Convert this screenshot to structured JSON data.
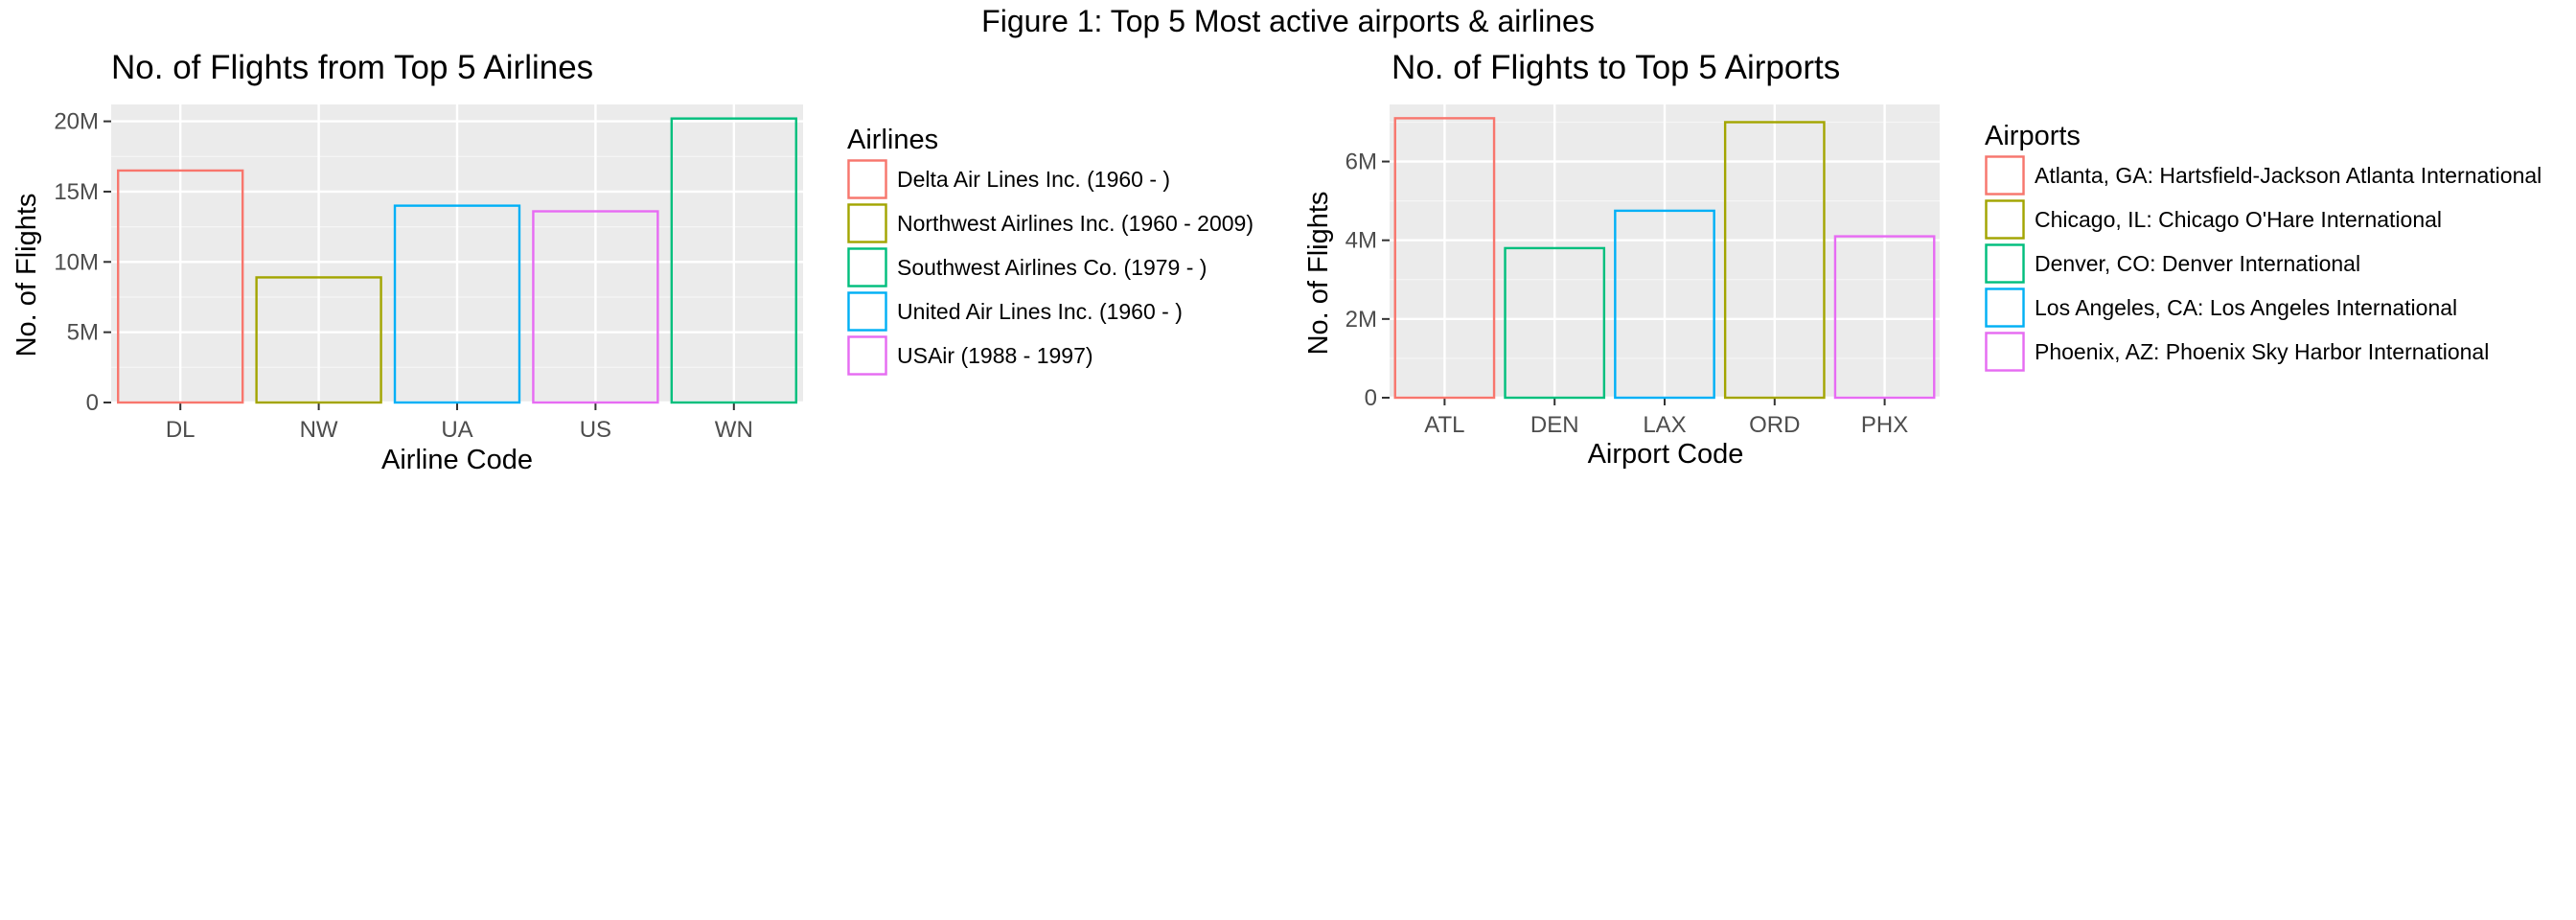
{
  "figure_title": "Figure 1: Top 5 Most active airports & airlines",
  "chart_data": [
    {
      "type": "bar",
      "title": "No. of Flights from Top 5 Airlines",
      "xlabel": "Airline Code",
      "ylabel": "No. of Flights",
      "categories": [
        "DL",
        "NW",
        "UA",
        "US",
        "WN"
      ],
      "values": [
        16500000,
        8900000,
        14000000,
        13600000,
        20200000
      ],
      "colors": [
        "#F8766D",
        "#A3A500",
        "#00B0F6",
        "#E76BF3",
        "#00BF7D"
      ],
      "ylim": [
        0,
        21200000
      ],
      "yticks": [
        0,
        5000000,
        10000000,
        15000000,
        20000000
      ],
      "ytick_labels": [
        "0",
        "5M",
        "10M",
        "15M",
        "20M"
      ],
      "grid": true,
      "fill": "none",
      "legend": {
        "title": "Airlines",
        "placement": "right",
        "entries": [
          {
            "label": "Delta Air Lines Inc. (1960 - )",
            "color": "#F8766D"
          },
          {
            "label": "Northwest Airlines Inc. (1960 - 2009)",
            "color": "#A3A500"
          },
          {
            "label": "Southwest Airlines Co. (1979 - )",
            "color": "#00BF7D"
          },
          {
            "label": "United Air Lines Inc. (1960 - )",
            "color": "#00B0F6"
          },
          {
            "label": "USAir (1988 - 1997)",
            "color": "#E76BF3"
          }
        ]
      }
    },
    {
      "type": "bar",
      "title": "No. of Flights to Top 5 Airports",
      "xlabel": "Airport Code",
      "ylabel": "No. of Flights",
      "categories": [
        "ATL",
        "DEN",
        "LAX",
        "ORD",
        "PHX"
      ],
      "values": [
        7100000,
        3800000,
        4750000,
        7000000,
        4100000
      ],
      "colors": [
        "#F8766D",
        "#00BF7D",
        "#00B0F6",
        "#A3A500",
        "#E76BF3"
      ],
      "ylim": [
        0,
        7450000
      ],
      "yticks": [
        0,
        2000000,
        4000000,
        6000000
      ],
      "ytick_labels": [
        "0",
        "2M",
        "4M",
        "6M"
      ],
      "grid": true,
      "fill": "none",
      "legend": {
        "title": "Airports",
        "placement": "right",
        "entries": [
          {
            "label": "Atlanta, GA: Hartsfield-Jackson Atlanta International",
            "color": "#F8766D"
          },
          {
            "label": "Chicago, IL: Chicago O'Hare International",
            "color": "#A3A500"
          },
          {
            "label": "Denver, CO: Denver International",
            "color": "#00BF7D"
          },
          {
            "label": "Los Angeles, CA: Los Angeles International",
            "color": "#00B0F6"
          },
          {
            "label": "Phoenix, AZ: Phoenix Sky Harbor International",
            "color": "#E76BF3"
          }
        ]
      }
    }
  ]
}
